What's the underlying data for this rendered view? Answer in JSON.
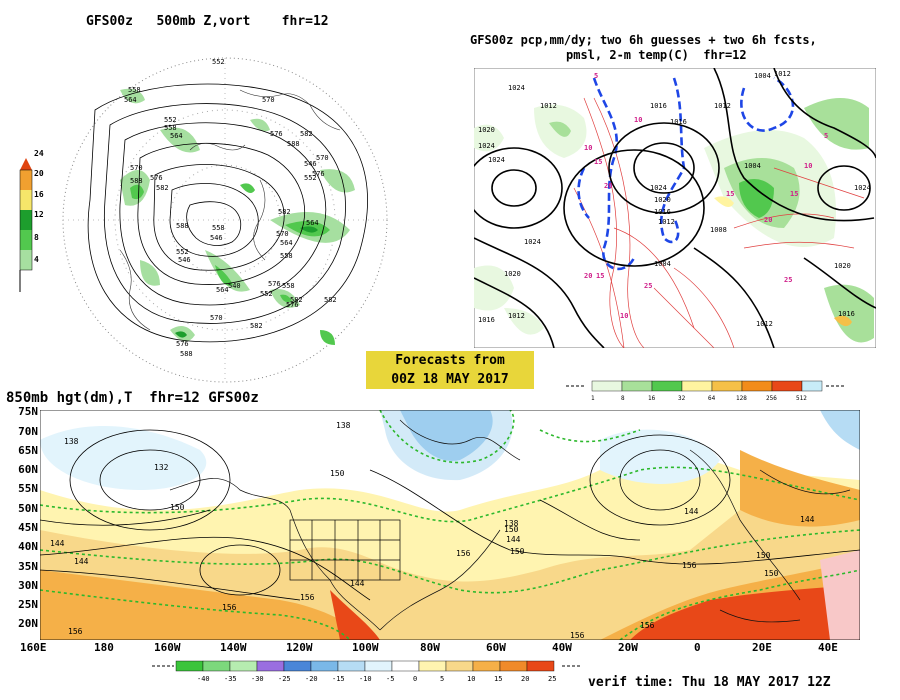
{
  "panel_500mb": {
    "title": "GFS00z   500mb Z,vort    fhr=12",
    "colorbar_ticks": [
      "24",
      "20",
      "16",
      "12",
      "8",
      "4"
    ],
    "contour_labels": [
      "552",
      "558",
      "564",
      "570",
      "576",
      "582",
      "588",
      "552",
      "558",
      "564",
      "570",
      "576",
      "582",
      "588",
      "546",
      "552",
      "558",
      "564",
      "570",
      "576",
      "582",
      "540",
      "546",
      "552",
      "558",
      "564",
      "570",
      "576",
      "582",
      "588",
      "546",
      "552",
      "558",
      "564",
      "570",
      "576",
      "582",
      "582",
      "588",
      "576"
    ],
    "colors": {
      "vort_light": "#a6dfa0",
      "vort_mid": "#52c84e",
      "vort_dark": "#1d9e2d",
      "vort_yellow": "#f6e66a",
      "vort_orange": "#f0a030",
      "vort_red": "#e04410"
    }
  },
  "panel_precip": {
    "title_line1": "GFS00z pcp,mm/dy; two 6h guesses + two 6h fcsts,",
    "title_line2": "pmsl, 2-m temp(C)  fhr=12",
    "isobar_labels": [
      "1024",
      "1012",
      "1020",
      "1024",
      "1024",
      "1016",
      "1024",
      "1020",
      "1016",
      "1012",
      "1004",
      "1024",
      "1020",
      "1012",
      "1016",
      "1004",
      "1008",
      "1012",
      "1016",
      "1012",
      "1020",
      "1024",
      "1004",
      "1012",
      "1016"
    ],
    "temp_labels": [
      "10",
      "15",
      "20",
      "25",
      "15",
      "10",
      "5",
      "15",
      "20",
      "25",
      "10",
      "5",
      "10",
      "15",
      "20"
    ],
    "colorbar_ticks": [
      "1",
      "8",
      "16",
      "32",
      "64",
      "128",
      "256",
      "512"
    ],
    "colors": {
      "c1": "#e8f8e0",
      "c2": "#a8e09a",
      "c3": "#52c84e",
      "c4": "#fff4a0",
      "c5": "#f5c048",
      "c6": "#f28c1a",
      "c7": "#e84818",
      "c8": "#c8ecf8"
    }
  },
  "banner": {
    "line1": "Forecasts from",
    "line2": "00Z 18 MAY 2017"
  },
  "panel_850mb": {
    "title": "850mb hgt(dm),T  fhr=12 GFS00z",
    "lat_labels": [
      "75N",
      "70N",
      "65N",
      "60N",
      "55N",
      "50N",
      "45N",
      "40N",
      "35N",
      "30N",
      "25N",
      "20N"
    ],
    "lon_labels": [
      "160E",
      "180",
      "160W",
      "140W",
      "120W",
      "100W",
      "80W",
      "60W",
      "40W",
      "20W",
      "0",
      "20E",
      "40E"
    ],
    "contour_labels": [
      "138",
      "138",
      "150",
      "132",
      "144",
      "144",
      "156",
      "150",
      "156",
      "150",
      "144",
      "138",
      "144",
      "150",
      "144",
      "156",
      "156",
      "156",
      "156",
      "156",
      "150",
      "144",
      "150"
    ],
    "colorbar_ticks": [
      "-40",
      "-35",
      "-30",
      "-25",
      "-20",
      "-15",
      "-10",
      "-5",
      "0",
      "5",
      "10",
      "15",
      "20",
      "25"
    ],
    "colorbar_colors": [
      "#3bc43b",
      "#7cd87c",
      "#b6ecb0",
      "#9a6ee0",
      "#4a86d8",
      "#7ab8e8",
      "#b6dcf4",
      "#e2f4fc",
      "#ffffff",
      "#fff4b0",
      "#f8d88a",
      "#f5b048",
      "#f08a2a",
      "#e84818"
    ],
    "verif": "verif time: Thu 18 MAY 2017 12Z"
  }
}
